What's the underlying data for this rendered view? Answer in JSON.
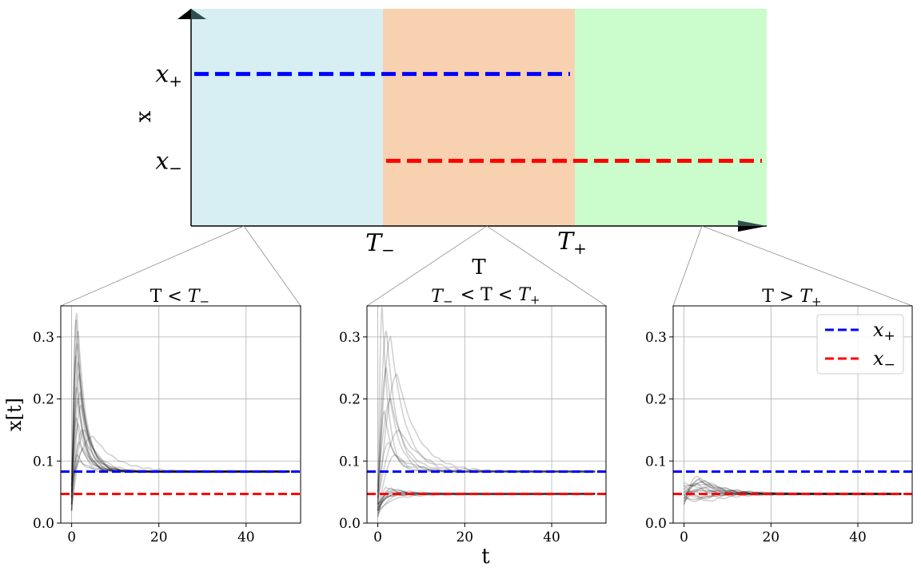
{
  "colors": {
    "region_low": "#d7eef3",
    "region_mid": "#f8d2b0",
    "region_high": "#cbfccb",
    "x_plus": "#0000ff",
    "x_minus": "#ff0000",
    "trajectory": "#000000",
    "grid": "#b0b0b0"
  },
  "chart_data": [
    {
      "type": "line",
      "role": "phase schematic",
      "xlabel": "T",
      "ylabel": "x",
      "ticks": {
        "x": [
          "T_-",
          "T_+"
        ],
        "y": [
          "x_+",
          "x_-"
        ]
      },
      "regions": [
        {
          "id": "low",
          "from": 0,
          "to": 1,
          "color": "#d7eef3"
        },
        {
          "id": "mid",
          "from": 1,
          "to": 2,
          "color": "#f8d2b0"
        },
        {
          "id": "high",
          "from": 2,
          "to": 3,
          "color": "#cbfccb"
        }
      ],
      "series": [
        {
          "name": "x_+",
          "x": [
            0,
            2
          ],
          "y": [
            0.7,
            0.7
          ],
          "color": "#0000ff",
          "style": "dashed"
        },
        {
          "name": "x_-",
          "x": [
            1,
            3
          ],
          "y": [
            0.3,
            0.3
          ],
          "color": "#ff0000",
          "style": "dashed"
        }
      ],
      "xlim": [
        0,
        3
      ],
      "ylim": [
        0,
        1
      ]
    },
    {
      "type": "line",
      "title": "T < T_-",
      "ylabel": "x[t]",
      "xlim": [
        -2.5,
        52.5
      ],
      "ylim": [
        0,
        0.35
      ],
      "xticks": [
        0,
        20,
        40
      ],
      "yticks": [
        0.0,
        0.1,
        0.2,
        0.3
      ],
      "grid": true,
      "reference_lines": [
        {
          "name": "x_+",
          "y": 0.083,
          "color": "#0000ff"
        },
        {
          "name": "x_-",
          "y": 0.047,
          "color": "#ff0000"
        }
      ],
      "trajectories": {
        "count": 20,
        "t_end": 50,
        "settle_value": 0.083,
        "initial_values": [
          0.02,
          0.03,
          0.05,
          0.07,
          0.02,
          0.04,
          0.06,
          0.03,
          0.05,
          0.08,
          0.02,
          0.04,
          0.06,
          0.03,
          0.07,
          0.05,
          0.02,
          0.04,
          0.06,
          0.03
        ],
        "peak_values": [
          0.34,
          0.33,
          0.31,
          0.29,
          0.27,
          0.26,
          0.24,
          0.22,
          0.21,
          0.2,
          0.19,
          0.17,
          0.16,
          0.15,
          0.14,
          0.13,
          0.12,
          0.11,
          0.1,
          0.15
        ],
        "peak_times": [
          1.2,
          1.0,
          1.5,
          1.3,
          1.0,
          1.6,
          1.8,
          1.2,
          2.0,
          1.4,
          2.2,
          1.1,
          1.6,
          2.4,
          5.0,
          1.8,
          2.6,
          1.3,
          2.0,
          3.0
        ]
      }
    },
    {
      "type": "line",
      "title": "T_- < T < T_+",
      "xlabel": "t",
      "xlim": [
        -2.5,
        52.5
      ],
      "ylim": [
        0,
        0.35
      ],
      "xticks": [
        0,
        20,
        40
      ],
      "yticks": [
        0.0,
        0.1,
        0.2,
        0.3
      ],
      "grid": true,
      "reference_lines": [
        {
          "name": "x_+",
          "y": 0.083,
          "color": "#0000ff"
        },
        {
          "name": "x_-",
          "y": 0.047,
          "color": "#ff0000"
        }
      ],
      "trajectories_upper": {
        "count": 10,
        "t_end": 50,
        "settle_value": 0.083,
        "initial_values": [
          0.02,
          0.04,
          0.03,
          0.05,
          0.02,
          0.06,
          0.03,
          0.04,
          0.05,
          0.02
        ],
        "peak_values": [
          0.35,
          0.31,
          0.3,
          0.25,
          0.24,
          0.2,
          0.18,
          0.15,
          0.13,
          0.11
        ],
        "peak_times": [
          1.0,
          2.0,
          3.0,
          2.0,
          4.5,
          3.0,
          1.5,
          5.0,
          2.5,
          4.0
        ]
      },
      "trajectories_lower": {
        "count": 12,
        "t_end": 50,
        "settle_value": 0.047,
        "initial_values": [
          0.01,
          0.02,
          0.03,
          0.015,
          0.025,
          0.02,
          0.03,
          0.01,
          0.02,
          0.025,
          0.015,
          0.03
        ],
        "peak_values": [
          0.058,
          0.056,
          0.054,
          0.052,
          0.05,
          0.049,
          0.045,
          0.043,
          0.042,
          0.044,
          0.046,
          0.048
        ],
        "peak_times": [
          2.0,
          3.0,
          4.0,
          2.5,
          5.0,
          3.5,
          4.0,
          2.0,
          6.0,
          3.0,
          5.0,
          2.5
        ]
      }
    },
    {
      "type": "line",
      "title": "T > T_+",
      "xlim": [
        -2.5,
        52.5
      ],
      "ylim": [
        0,
        0.35
      ],
      "xticks": [
        0,
        20,
        40
      ],
      "yticks": [
        0.0,
        0.1,
        0.2,
        0.3
      ],
      "grid": true,
      "legend": {
        "placement": "top-right",
        "entries": [
          "x_+",
          "x_-"
        ]
      },
      "reference_lines": [
        {
          "name": "x_+",
          "y": 0.083,
          "color": "#0000ff"
        },
        {
          "name": "x_-",
          "y": 0.047,
          "color": "#ff0000"
        }
      ],
      "trajectories": {
        "count": 18,
        "t_end": 50,
        "settle_value": 0.047,
        "initial_values": [
          0.03,
          0.035,
          0.04,
          0.045,
          0.05,
          0.055,
          0.06,
          0.065,
          0.035,
          0.04,
          0.045,
          0.05,
          0.03,
          0.055,
          0.06,
          0.04,
          0.05,
          0.045
        ],
        "peak_values": [
          0.075,
          0.072,
          0.07,
          0.068,
          0.066,
          0.064,
          0.062,
          0.06,
          0.058,
          0.056,
          0.054,
          0.052,
          0.05,
          0.042,
          0.04,
          0.038,
          0.036,
          0.035
        ],
        "peak_times": [
          3.0,
          4.0,
          3.5,
          5.0,
          4.5,
          3.0,
          6.0,
          2.5,
          5.5,
          4.0,
          3.0,
          6.5,
          2.0,
          4.0,
          5.0,
          3.0,
          6.0,
          2.5
        ]
      }
    }
  ]
}
